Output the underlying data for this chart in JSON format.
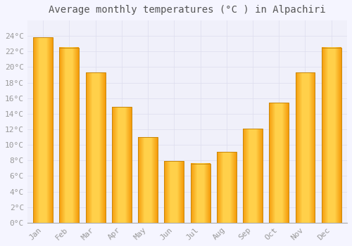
{
  "title": "Average monthly temperatures (°C ) in Alpachiri",
  "months": [
    "Jan",
    "Feb",
    "Mar",
    "Apr",
    "May",
    "Jun",
    "Jul",
    "Aug",
    "Sep",
    "Oct",
    "Nov",
    "Dec"
  ],
  "values": [
    23.8,
    22.5,
    19.3,
    14.9,
    11.0,
    7.9,
    7.6,
    9.1,
    12.1,
    15.4,
    19.3,
    22.5
  ],
  "bar_color_center": "#FFD04A",
  "bar_color_edge": "#F59B0A",
  "background_color": "#F5F5FF",
  "plot_bg_color": "#F0F0FA",
  "grid_color": "#DDDDEE",
  "title_color": "#555555",
  "tick_label_color": "#999999",
  "ylim": [
    0,
    26
  ],
  "yticks": [
    0,
    2,
    4,
    6,
    8,
    10,
    12,
    14,
    16,
    18,
    20,
    22,
    24
  ],
  "title_fontsize": 10,
  "tick_fontsize": 8,
  "bar_width": 0.75
}
